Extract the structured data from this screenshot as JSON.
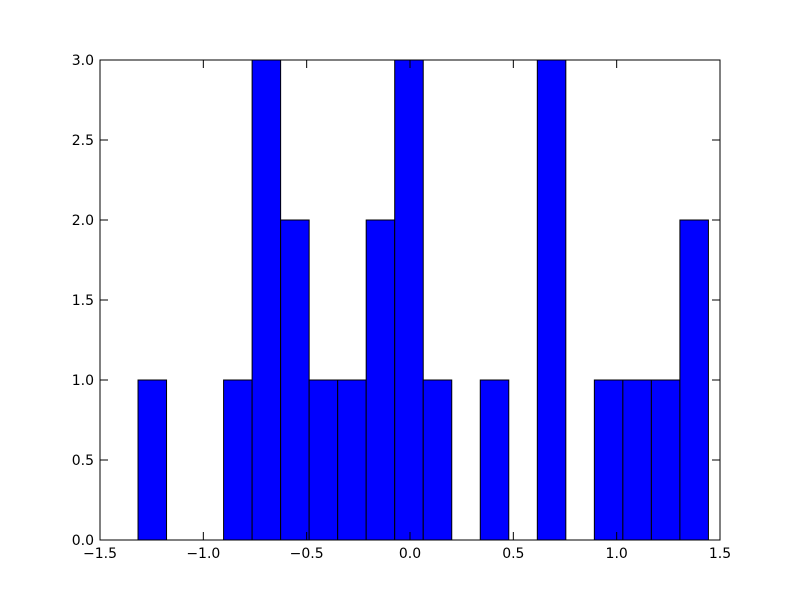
{
  "chart_data": {
    "type": "histogram",
    "bins": [
      -1.316,
      -1.178,
      -1.04,
      -0.902,
      -0.764,
      -0.626,
      -0.488,
      -0.35,
      -0.212,
      -0.074,
      0.064,
      0.202,
      0.34,
      0.478,
      0.616,
      0.754,
      0.892,
      1.03,
      1.168,
      1.306,
      1.444
    ],
    "values": [
      1,
      0,
      0,
      1,
      3,
      2,
      1,
      1,
      2,
      3,
      1,
      0,
      1,
      0,
      3,
      0,
      1,
      1,
      1,
      2
    ],
    "color": "#0000ff",
    "xlim": [
      -1.5,
      1.5
    ],
    "xticks": [
      {
        "value": -1.5,
        "label": "−1.5"
      },
      {
        "value": -1.0,
        "label": "−1.0"
      },
      {
        "value": -0.5,
        "label": "−0.5"
      },
      {
        "value": 0.0,
        "label": "0.0"
      },
      0.5,
      {
        "value": 1.0,
        "label": "1.0"
      },
      1.5
    ],
    "ylim": [
      0,
      3
    ],
    "yticks": [
      {
        "value": 0,
        "label": "0.0"
      },
      0.5,
      {
        "value": 1,
        "label": "1.0"
      },
      1.5,
      {
        "value": 2,
        "label": "2.0"
      },
      2.5,
      {
        "value": 3,
        "label": "3.0"
      }
    ],
    "grid": false
  }
}
